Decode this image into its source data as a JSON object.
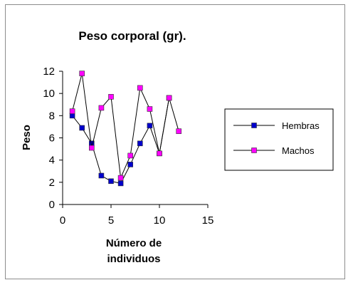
{
  "chart_data": {
    "type": "line",
    "title": "Peso corporal (gr).",
    "xlabel_lines": [
      "Número de",
      "individuos"
    ],
    "ylabel": "Peso",
    "xlim": [
      0,
      15
    ],
    "ylim": [
      0,
      12
    ],
    "x_ticks": [
      0,
      5,
      10,
      15
    ],
    "y_ticks": [
      0,
      2,
      4,
      6,
      8,
      10,
      12
    ],
    "grid": false,
    "legend_position": "right",
    "series": [
      {
        "name": "Hembras",
        "color": "#0000cc",
        "marker": "square",
        "x": [
          1,
          2,
          3,
          4,
          5,
          6,
          7,
          8,
          9,
          10,
          11
        ],
        "y": [
          8.0,
          6.9,
          5.5,
          2.6,
          2.1,
          1.9,
          3.6,
          5.5,
          7.1,
          4.6,
          9.6
        ]
      },
      {
        "name": "Machos",
        "color": "#ff00ff",
        "marker": "square",
        "x": [
          1,
          2,
          3,
          4,
          5,
          6,
          7,
          8,
          9,
          10,
          11,
          12
        ],
        "y": [
          8.4,
          11.8,
          5.1,
          8.7,
          9.7,
          2.4,
          4.4,
          10.5,
          8.6,
          4.6,
          9.6,
          6.6
        ]
      }
    ]
  }
}
